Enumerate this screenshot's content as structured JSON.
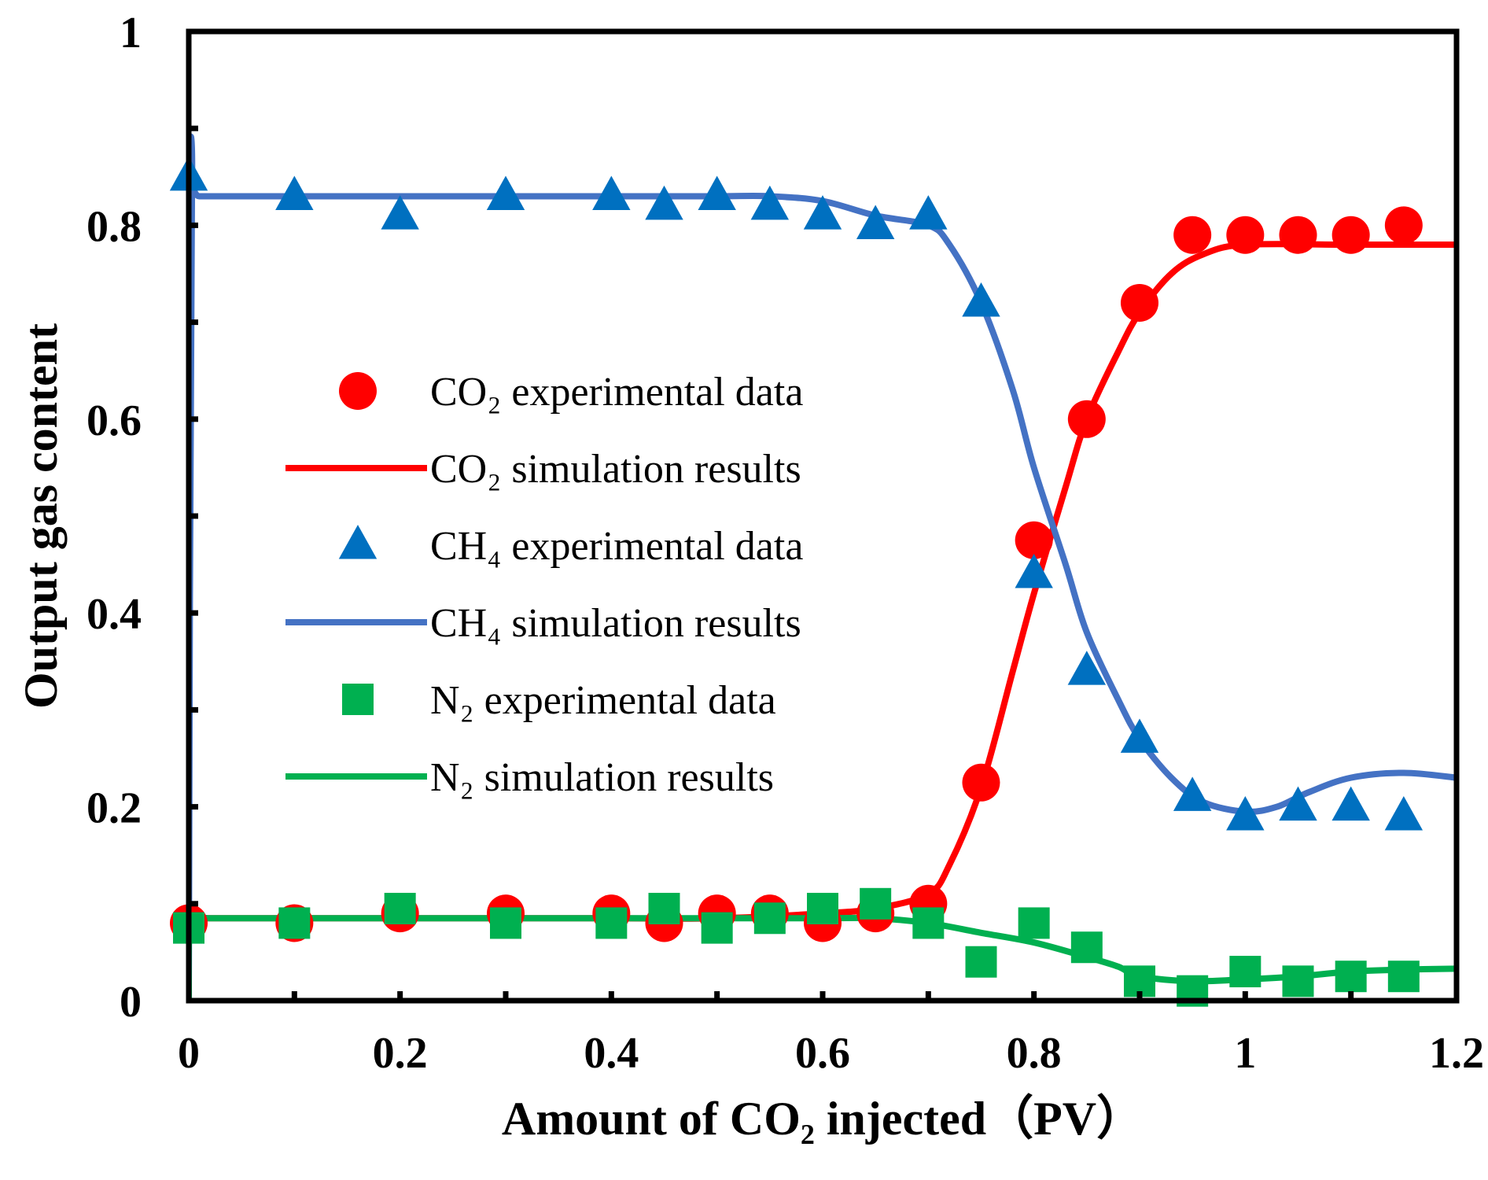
{
  "chart_data": {
    "type": "line",
    "title": "",
    "xlabel": "Amount of CO₂ injected（PV）",
    "ylabel": "Output gas content",
    "xlim": [
      0,
      1.2
    ],
    "ylim": [
      0,
      1
    ],
    "xticks": [
      "0",
      "0.2",
      "0.4",
      "0.6",
      "0.8",
      "1",
      "1.2"
    ],
    "yticks": [
      "0",
      "0.2",
      "0.4",
      "0.6",
      "0.8",
      "1"
    ],
    "grid": false,
    "legend_position": "center-left",
    "legend": [
      "CO₂ experimental data",
      "CO₂ simulation results",
      "CH₄ experimental data",
      "CH₄ simulation results",
      "N₂ experimental data",
      "N₂ simulation results"
    ],
    "series": [
      {
        "name": "CO₂ experimental data",
        "kind": "scatter",
        "marker": "circle",
        "color": "#FF0000",
        "x": [
          0,
          0.1,
          0.2,
          0.3,
          0.4,
          0.45,
          0.5,
          0.55,
          0.6,
          0.65,
          0.7,
          0.75,
          0.8,
          0.85,
          0.9,
          0.95,
          1.0,
          1.05,
          1.1,
          1.15
        ],
        "y": [
          0.08,
          0.08,
          0.09,
          0.09,
          0.09,
          0.08,
          0.09,
          0.09,
          0.08,
          0.09,
          0.1,
          0.225,
          0.475,
          0.6,
          0.72,
          0.79,
          0.79,
          0.79,
          0.79,
          0.8
        ]
      },
      {
        "name": "CO₂ simulation results",
        "kind": "line",
        "color": "#FF0000",
        "x": [
          0,
          0.1,
          0.2,
          0.3,
          0.4,
          0.5,
          0.6,
          0.65,
          0.7,
          0.72,
          0.75,
          0.78,
          0.8,
          0.83,
          0.85,
          0.88,
          0.9,
          0.93,
          0.96,
          1.0,
          1.1,
          1.2
        ],
        "y": [
          0.085,
          0.085,
          0.085,
          0.085,
          0.085,
          0.085,
          0.09,
          0.095,
          0.11,
          0.14,
          0.22,
          0.34,
          0.42,
          0.53,
          0.6,
          0.67,
          0.71,
          0.75,
          0.77,
          0.78,
          0.78,
          0.78
        ]
      },
      {
        "name": "CH₄ experimental data",
        "kind": "scatter",
        "marker": "triangle",
        "color": "#0070C0",
        "x": [
          0,
          0.1,
          0.2,
          0.3,
          0.4,
          0.45,
          0.5,
          0.55,
          0.6,
          0.65,
          0.7,
          0.75,
          0.8,
          0.85,
          0.9,
          0.95,
          1.0,
          1.05,
          1.1,
          1.15
        ],
        "y": [
          0.85,
          0.83,
          0.81,
          0.83,
          0.83,
          0.82,
          0.83,
          0.82,
          0.81,
          0.8,
          0.81,
          0.72,
          0.44,
          0.34,
          0.27,
          0.21,
          0.19,
          0.2,
          0.2,
          0.19
        ]
      },
      {
        "name": "CH₄ simulation results",
        "kind": "line",
        "color": "#4472C4",
        "x": [
          0,
          0.003,
          0.01,
          0.1,
          0.2,
          0.3,
          0.4,
          0.5,
          0.55,
          0.6,
          0.65,
          0.7,
          0.72,
          0.75,
          0.78,
          0.8,
          0.83,
          0.85,
          0.88,
          0.9,
          0.93,
          0.96,
          1.0,
          1.03,
          1.06,
          1.1,
          1.15,
          1.2
        ],
        "y": [
          0,
          0.83,
          0.83,
          0.83,
          0.83,
          0.83,
          0.83,
          0.83,
          0.83,
          0.825,
          0.81,
          0.8,
          0.78,
          0.72,
          0.63,
          0.55,
          0.45,
          0.38,
          0.31,
          0.27,
          0.23,
          0.205,
          0.195,
          0.2,
          0.215,
          0.23,
          0.235,
          0.23
        ]
      },
      {
        "name": "N₂ experimental data",
        "kind": "scatter",
        "marker": "square",
        "color": "#00B050",
        "x": [
          0,
          0.1,
          0.2,
          0.3,
          0.4,
          0.45,
          0.5,
          0.55,
          0.6,
          0.65,
          0.7,
          0.75,
          0.8,
          0.85,
          0.9,
          0.95,
          1.0,
          1.05,
          1.1,
          1.15
        ],
        "y": [
          0.075,
          0.08,
          0.095,
          0.08,
          0.08,
          0.095,
          0.075,
          0.085,
          0.095,
          0.1,
          0.08,
          0.04,
          0.08,
          0.055,
          0.02,
          0.01,
          0.03,
          0.02,
          0.025,
          0.025
        ]
      },
      {
        "name": "N₂ simulation results",
        "kind": "line",
        "color": "#00B050",
        "x": [
          0,
          0.002,
          0.02,
          0.1,
          0.2,
          0.3,
          0.4,
          0.5,
          0.6,
          0.65,
          0.7,
          0.75,
          0.8,
          0.85,
          0.88,
          0.9,
          0.95,
          1.0,
          1.05,
          1.1,
          1.15,
          1.2
        ],
        "y": [
          0,
          0.085,
          0.085,
          0.085,
          0.085,
          0.085,
          0.085,
          0.085,
          0.085,
          0.085,
          0.08,
          0.07,
          0.06,
          0.045,
          0.035,
          0.025,
          0.02,
          0.022,
          0.025,
          0.03,
          0.032,
          0.033
        ]
      }
    ]
  }
}
